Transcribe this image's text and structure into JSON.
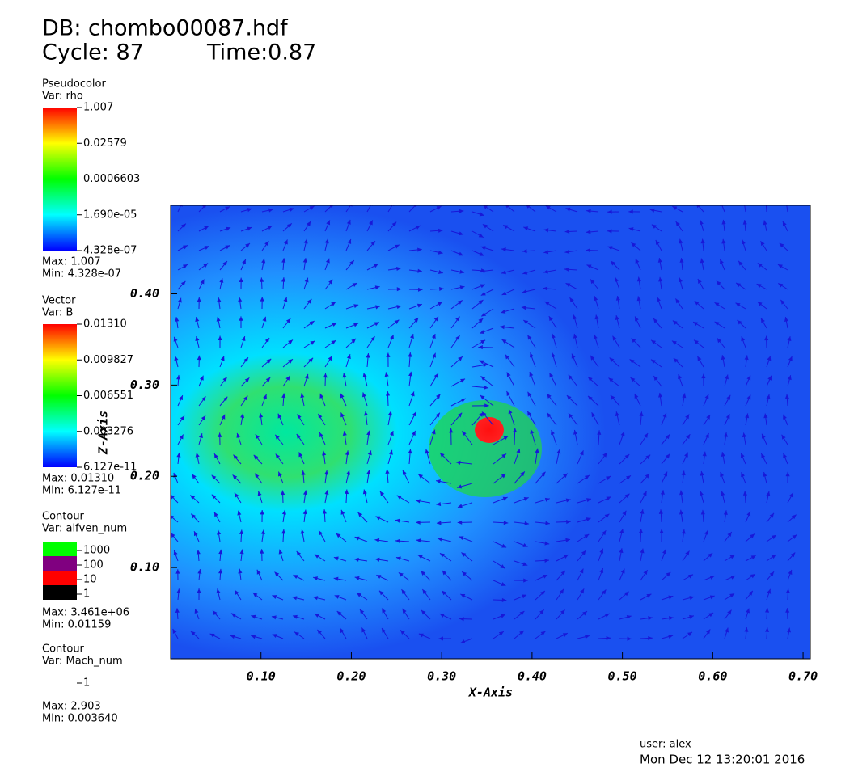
{
  "header": {
    "db": "DB: chombo00087.hdf",
    "cycle": "Cycle: 87",
    "time": "Time:0.87"
  },
  "legends": [
    {
      "kind": "Pseudocolor",
      "var": "Var: rho",
      "labels": [
        "1.007",
        "0.02579",
        "0.0006603",
        "1.690e-05",
        "4.328e-07"
      ],
      "max": "Max:  1.007",
      "min": "Min:  4.328e-07"
    },
    {
      "kind": "Vector",
      "var": "Var: B",
      "labels": [
        "0.01310",
        "0.009827",
        "0.006551",
        "0.003276",
        "6.127e-11"
      ],
      "max": "Max:  0.01310",
      "min": "Min:  6.127e-11"
    },
    {
      "kind": "Contour",
      "var": "Var: alfven_num",
      "levels": [
        {
          "label": "1000",
          "color": "#00ff00"
        },
        {
          "label": "100",
          "color": "#800080"
        },
        {
          "label": "10",
          "color": "#ff0000"
        },
        {
          "label": "1",
          "color": "#000000"
        }
      ],
      "max": "Max:  3.461e+06",
      "min": "Min:  0.01159"
    },
    {
      "kind": "Contour",
      "var": "Var: Mach_num",
      "levels": [
        {
          "label": "1",
          "color": "#ffffff"
        }
      ],
      "max": "Max:  2.903",
      "min": "Min:  0.003640"
    }
  ],
  "chart_data": {
    "type": "vector-field",
    "xlabel": "X-Axis",
    "ylabel": "Z-Axis",
    "xlim": [
      0,
      0.708
    ],
    "ylim": [
      0,
      0.497
    ],
    "xticks": [
      {
        "value": 0.1,
        "label": "0.10"
      },
      {
        "value": 0.2,
        "label": "0.20"
      },
      {
        "value": 0.3,
        "label": "0.30"
      },
      {
        "value": 0.4,
        "label": "0.40"
      },
      {
        "value": 0.5,
        "label": "0.50"
      },
      {
        "value": 0.6,
        "label": "0.60"
      },
      {
        "value": 0.7,
        "label": "0.70"
      }
    ],
    "yticks": [
      {
        "value": 0.1,
        "label": "0.10"
      },
      {
        "value": 0.2,
        "label": "0.20"
      },
      {
        "value": 0.3,
        "label": "0.30"
      },
      {
        "value": 0.4,
        "label": "0.40"
      }
    ]
  },
  "footer": {
    "user": "user: alex",
    "date": "Mon Dec 12 13:20:01 2016"
  }
}
